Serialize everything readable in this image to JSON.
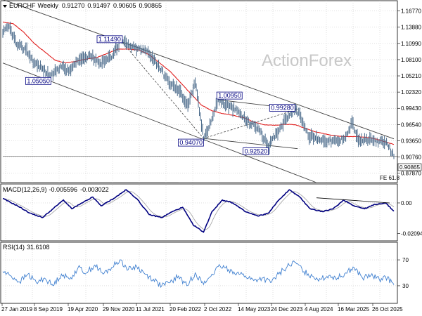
{
  "chart_data": {
    "type": "line",
    "symbol": "EURCHF",
    "timeframe": "Weekly",
    "ohlc_header": {
      "open": "0.91270",
      "high": "0.91497",
      "low": "0.90605",
      "close": "0.90865"
    },
    "watermark": "ActionForex",
    "colors": {
      "price": "#4a6a8a",
      "sma": "#e02020",
      "channel": "#404040",
      "macd": "#000080",
      "signal": "#a0a0a0",
      "rsi": "#4080d0",
      "label_border": "#000080",
      "label_text": "#000080",
      "grid": "#c0c0c0"
    },
    "price_axis": {
      "ticks": [
        "1.16770",
        "1.13880",
        "1.10990",
        "1.08100",
        "1.05210",
        "1.02320",
        "0.99430",
        "0.96540",
        "0.93650",
        "0.90760",
        "0.87870"
      ],
      "current_price": "0.90865",
      "fe_label": "FE 61.8",
      "range": [
        0.862,
        1.186
      ]
    },
    "x_axis": {
      "ticks": [
        "27 Jan 2019",
        "8 Sep 2019",
        "19 Apr 2020",
        "29 Nov 2020",
        "11 Jul 2021",
        "20 Feb 2022",
        "2 Oct 2022",
        "14 May 2023",
        "24 Dec 2023",
        "4 Aug 2024",
        "16 Mar 2025",
        "26 Oct 2025"
      ]
    },
    "price_series": {
      "anchors": [
        [
          0,
          1.128
        ],
        [
          6,
          1.14
        ],
        [
          14,
          1.105
        ],
        [
          22,
          1.1
        ],
        [
          30,
          1.075
        ],
        [
          38,
          1.065
        ],
        [
          46,
          1.0505
        ],
        [
          55,
          1.07
        ],
        [
          63,
          1.06
        ],
        [
          73,
          1.08
        ],
        [
          83,
          1.09
        ],
        [
          93,
          1.075
        ],
        [
          103,
          1.085
        ],
        [
          113,
          1.1149
        ],
        [
          121,
          1.105
        ],
        [
          129,
          1.1
        ],
        [
          139,
          1.095
        ],
        [
          149,
          1.07
        ],
        [
          159,
          1.04
        ],
        [
          169,
          1.025
        ],
        [
          177,
          1.0
        ],
        [
          184,
          1.04
        ],
        [
          192,
          0.9407
        ],
        [
          200,
          0.975
        ],
        [
          206,
          1.0095
        ],
        [
          214,
          1.0
        ],
        [
          224,
          0.99
        ],
        [
          234,
          0.97
        ],
        [
          244,
          0.96
        ],
        [
          254,
          0.9252
        ],
        [
          262,
          0.95
        ],
        [
          270,
          0.975
        ],
        [
          278,
          0.9928
        ],
        [
          284,
          0.985
        ],
        [
          292,
          0.945
        ],
        [
          302,
          0.94
        ],
        [
          312,
          0.936
        ],
        [
          322,
          0.935
        ],
        [
          330,
          0.95
        ],
        [
          334,
          0.97
        ],
        [
          340,
          0.936
        ],
        [
          350,
          0.938
        ],
        [
          360,
          0.935
        ],
        [
          368,
          0.93
        ],
        [
          374,
          0.9087
        ]
      ]
    },
    "sma_series": {
      "anchors": [
        [
          0,
          1.148
        ],
        [
          10,
          1.145
        ],
        [
          20,
          1.13
        ],
        [
          30,
          1.11
        ],
        [
          40,
          1.095
        ],
        [
          50,
          1.08
        ],
        [
          60,
          1.075
        ],
        [
          70,
          1.078
        ],
        [
          80,
          1.082
        ],
        [
          90,
          1.085
        ],
        [
          100,
          1.092
        ],
        [
          110,
          1.1
        ],
        [
          120,
          1.1
        ],
        [
          130,
          1.098
        ],
        [
          140,
          1.09
        ],
        [
          150,
          1.075
        ],
        [
          160,
          1.06
        ],
        [
          170,
          1.04
        ],
        [
          180,
          1.02
        ],
        [
          190,
          1.0
        ],
        [
          200,
          0.99
        ],
        [
          210,
          0.985
        ],
        [
          220,
          0.982
        ],
        [
          230,
          0.978
        ],
        [
          240,
          0.97
        ],
        [
          250,
          0.965
        ],
        [
          260,
          0.964
        ],
        [
          270,
          0.966
        ],
        [
          280,
          0.965
        ],
        [
          290,
          0.958
        ],
        [
          300,
          0.952
        ],
        [
          310,
          0.948
        ],
        [
          320,
          0.945
        ],
        [
          330,
          0.944
        ],
        [
          340,
          0.944
        ],
        [
          350,
          0.942
        ],
        [
          360,
          0.938
        ],
        [
          370,
          0.932
        ],
        [
          374,
          0.93
        ]
      ]
    },
    "channel_lines": [
      {
        "from": [
          0,
          1.188
        ],
        "to": [
          374,
          0.94
        ]
      },
      {
        "from": [
          0,
          1.075
        ],
        "to": [
          300,
          0.862
        ]
      },
      {
        "from": [
          206,
          1.0095
        ],
        "to": [
          282,
          0.9928
        ]
      },
      {
        "from": [
          192,
          0.9407
        ],
        "to": [
          282,
          0.9225
        ]
      },
      {
        "from": [
          168,
          0.862
        ],
        "to": [
          374,
          0.862
        ]
      }
    ],
    "dashed_lines": [
      {
        "from": [
          113,
          1.1149
        ],
        "to": [
          192,
          0.9407
        ]
      },
      {
        "from": [
          192,
          0.9407
        ],
        "to": [
          282,
          0.9928
        ]
      }
    ],
    "price_labels": [
      {
        "text": "1.11490",
        "anchor": [
          113,
          1.1149
        ],
        "position": "above-left"
      },
      {
        "text": "1.05050",
        "anchor": [
          46,
          1.0505
        ],
        "position": "below-left"
      },
      {
        "text": "1.00950",
        "anchor": [
          206,
          1.0095
        ],
        "position": "above-right"
      },
      {
        "text": "0.99280",
        "anchor": [
          278,
          0.9928
        ],
        "position": "above-left"
      },
      {
        "text": "0.94070",
        "anchor": [
          192,
          0.9407
        ],
        "position": "below-left"
      },
      {
        "text": "0.92520",
        "anchor": [
          254,
          0.9252
        ],
        "position": "below-left"
      }
    ],
    "macd": {
      "label": "MACD(12,26,9)",
      "macd_value": "-0.005596",
      "signal_value": "-0.003022",
      "ticks": [
        "0.00",
        "-0.020949"
      ],
      "range": [
        -0.025,
        0.012
      ],
      "anchors": [
        [
          0,
          0.003
        ],
        [
          14,
          -0.002
        ],
        [
          26,
          -0.007
        ],
        [
          38,
          -0.01
        ],
        [
          48,
          -0.004
        ],
        [
          58,
          0.002
        ],
        [
          66,
          -0.004
        ],
        [
          76,
          0.0
        ],
        [
          86,
          0.004
        ],
        [
          94,
          -0.002
        ],
        [
          106,
          0.003
        ],
        [
          118,
          0.009
        ],
        [
          128,
          0.003
        ],
        [
          140,
          -0.008
        ],
        [
          152,
          -0.01
        ],
        [
          162,
          -0.006
        ],
        [
          172,
          -0.003
        ],
        [
          182,
          -0.015
        ],
        [
          192,
          -0.02
        ],
        [
          200,
          -0.006
        ],
        [
          210,
          0.002
        ],
        [
          220,
          0.0
        ],
        [
          232,
          -0.006
        ],
        [
          244,
          -0.009
        ],
        [
          254,
          -0.007
        ],
        [
          264,
          0.002
        ],
        [
          274,
          0.009
        ],
        [
          284,
          0.004
        ],
        [
          294,
          -0.004
        ],
        [
          306,
          -0.006
        ],
        [
          316,
          -0.004
        ],
        [
          326,
          0.002
        ],
        [
          336,
          -0.002
        ],
        [
          346,
          -0.004
        ],
        [
          356,
          -0.001
        ],
        [
          366,
          0.0
        ],
        [
          374,
          -0.0056
        ]
      ],
      "trendline": {
        "from": [
          300,
          0.0035
        ],
        "to": [
          370,
          0.0
        ]
      }
    },
    "rsi": {
      "label": "RSI(14)",
      "value": "31.6108",
      "ticks": [
        "70",
        "30"
      ],
      "range": [
        5,
        95
      ],
      "anchors": [
        [
          0,
          52
        ],
        [
          8,
          45
        ],
        [
          16,
          36
        ],
        [
          24,
          48
        ],
        [
          32,
          35
        ],
        [
          40,
          42
        ],
        [
          48,
          30
        ],
        [
          56,
          48
        ],
        [
          64,
          40
        ],
        [
          72,
          58
        ],
        [
          80,
          50
        ],
        [
          88,
          62
        ],
        [
          96,
          48
        ],
        [
          104,
          58
        ],
        [
          112,
          70
        ],
        [
          120,
          55
        ],
        [
          128,
          60
        ],
        [
          136,
          48
        ],
        [
          144,
          40
        ],
        [
          152,
          30
        ],
        [
          160,
          35
        ],
        [
          168,
          45
        ],
        [
          176,
          30
        ],
        [
          184,
          50
        ],
        [
          192,
          32
        ],
        [
          200,
          48
        ],
        [
          208,
          60
        ],
        [
          216,
          55
        ],
        [
          224,
          50
        ],
        [
          232,
          45
        ],
        [
          240,
          38
        ],
        [
          248,
          42
        ],
        [
          256,
          35
        ],
        [
          264,
          48
        ],
        [
          272,
          60
        ],
        [
          280,
          66
        ],
        [
          288,
          52
        ],
        [
          296,
          45
        ],
        [
          304,
          40
        ],
        [
          312,
          46
        ],
        [
          320,
          42
        ],
        [
          328,
          50
        ],
        [
          336,
          58
        ],
        [
          344,
          42
        ],
        [
          352,
          46
        ],
        [
          360,
          40
        ],
        [
          366,
          44
        ],
        [
          374,
          31.6
        ]
      ]
    }
  }
}
